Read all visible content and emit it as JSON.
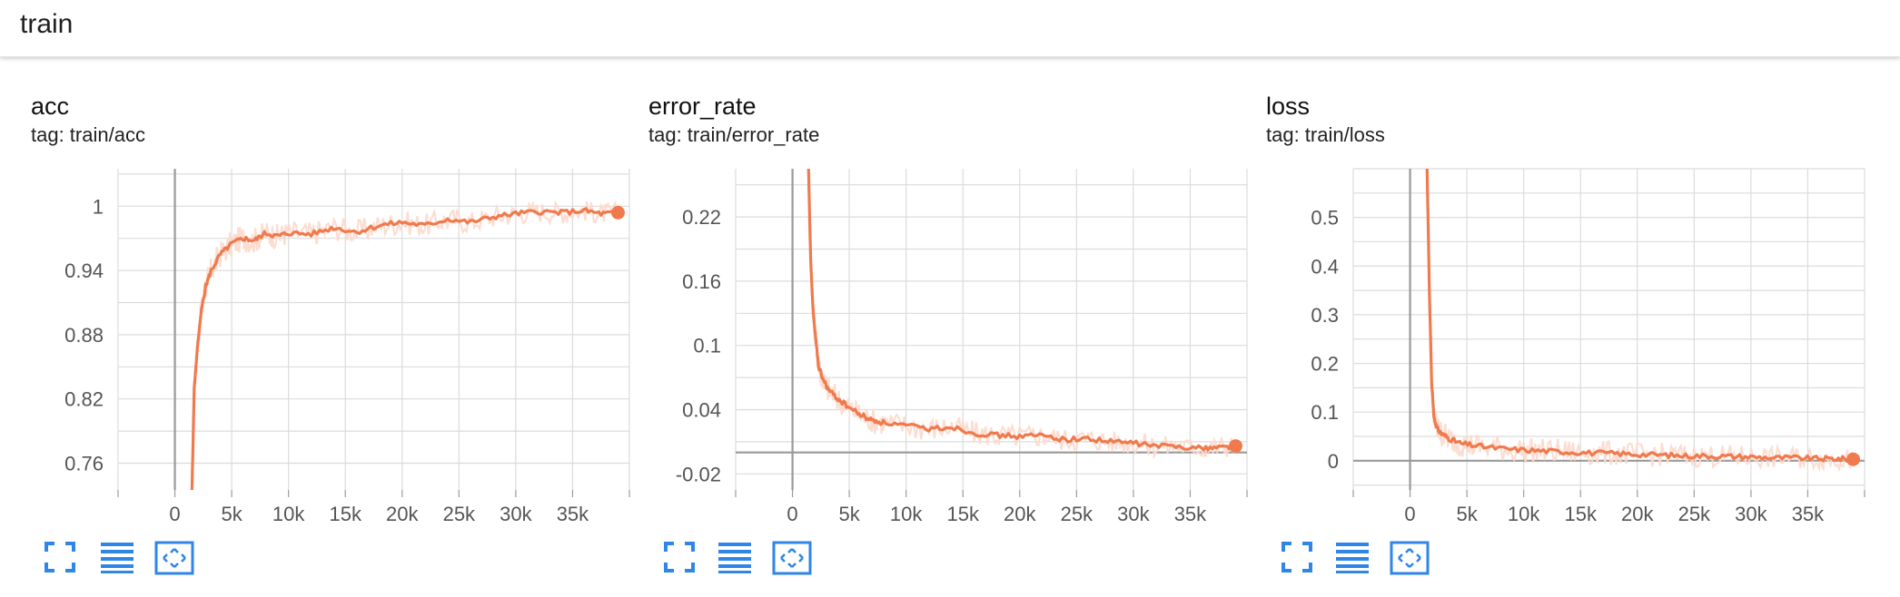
{
  "header": {
    "title": "train"
  },
  "colors": {
    "line": "#f07a4d",
    "raw": "#fcd9cc",
    "grid": "#dcdcdc",
    "axis": "#999999",
    "icon": "#2f86e6"
  },
  "icons": [
    "fit-domain-icon",
    "toggle-log-icon",
    "expand-icon"
  ],
  "chart_data": [
    {
      "type": "line",
      "title": "acc",
      "tag": "tag: train/acc",
      "xlim": [
        -5000,
        40000
      ],
      "ylim": [
        0.735,
        1.035
      ],
      "xticks": [
        0,
        5000,
        10000,
        15000,
        20000,
        25000,
        30000,
        35000
      ],
      "xtick_labels": [
        "0",
        "5k",
        "10k",
        "15k",
        "20k",
        "25k",
        "30k",
        "35k"
      ],
      "yticks": [
        0.76,
        0.82,
        0.88,
        0.94,
        1
      ],
      "ytick_labels": [
        "0.76",
        "0.82",
        "0.88",
        "0.94",
        "1"
      ],
      "series": [
        {
          "x": [
            1500,
            1700,
            2000,
            2300,
            2700,
            3200,
            4000,
            5000,
            6000,
            7000,
            8000,
            9000,
            10000,
            12000,
            14000,
            16000,
            18000,
            20000,
            22000,
            24000,
            26000,
            28000,
            30000,
            32000,
            34000,
            36000,
            37500,
            39000
          ],
          "y": [
            0.73,
            0.83,
            0.87,
            0.9,
            0.925,
            0.94,
            0.955,
            0.965,
            0.97,
            0.968,
            0.975,
            0.972,
            0.975,
            0.974,
            0.98,
            0.976,
            0.982,
            0.985,
            0.982,
            0.988,
            0.985,
            0.99,
            0.993,
            0.995,
            0.994,
            0.996,
            0.993,
            0.994
          ]
        }
      ]
    },
    {
      "type": "line",
      "title": "error_rate",
      "tag": "tag: train/error_rate",
      "xlim": [
        -5000,
        40000
      ],
      "ylim": [
        -0.035,
        0.265
      ],
      "xticks": [
        0,
        5000,
        10000,
        15000,
        20000,
        25000,
        30000,
        35000
      ],
      "xtick_labels": [
        "0",
        "5k",
        "10k",
        "15k",
        "20k",
        "25k",
        "30k",
        "35k"
      ],
      "yticks": [
        -0.02,
        0.04,
        0.1,
        0.16,
        0.22
      ],
      "ytick_labels": [
        "-0.02",
        "0.04",
        "0.1",
        "0.16",
        "0.22"
      ],
      "series": [
        {
          "x": [
            1400,
            1600,
            1800,
            2000,
            2300,
            2700,
            3200,
            4000,
            5000,
            6000,
            7000,
            8000,
            10000,
            12000,
            14000,
            16000,
            18000,
            20000,
            22000,
            24000,
            26000,
            28000,
            30000,
            32000,
            34000,
            36000,
            37500,
            39000
          ],
          "y": [
            0.27,
            0.18,
            0.135,
            0.11,
            0.08,
            0.068,
            0.058,
            0.05,
            0.042,
            0.035,
            0.03,
            0.028,
            0.025,
            0.022,
            0.024,
            0.018,
            0.016,
            0.015,
            0.016,
            0.012,
            0.013,
            0.01,
            0.009,
            0.006,
            0.006,
            0.004,
            0.005,
            0.006
          ]
        }
      ]
    },
    {
      "type": "line",
      "title": "loss",
      "tag": "tag: train/loss",
      "xlim": [
        -5000,
        40000
      ],
      "ylim": [
        -0.06,
        0.6
      ],
      "xticks": [
        0,
        5000,
        10000,
        15000,
        20000,
        25000,
        30000,
        35000
      ],
      "xtick_labels": [
        "0",
        "5k",
        "10k",
        "15k",
        "20k",
        "25k",
        "30k",
        "35k"
      ],
      "yticks": [
        0,
        0.1,
        0.2,
        0.3,
        0.4,
        0.5
      ],
      "ytick_labels": [
        "0",
        "0.1",
        "0.2",
        "0.3",
        "0.4",
        "0.5"
      ],
      "series": [
        {
          "x": [
            1500,
            1700,
            1900,
            2100,
            2400,
            2800,
            3500,
            4500,
            6000,
            8000,
            10000,
            12000,
            14000,
            16000,
            18000,
            20000,
            22000,
            24000,
            26000,
            28000,
            30000,
            32000,
            34000,
            36000,
            37500,
            39000
          ],
          "y": [
            0.6,
            0.35,
            0.16,
            0.09,
            0.065,
            0.055,
            0.045,
            0.035,
            0.03,
            0.025,
            0.022,
            0.02,
            0.018,
            0.016,
            0.015,
            0.013,
            0.012,
            0.01,
            0.01,
            0.009,
            0.008,
            0.006,
            0.006,
            0.004,
            0.004,
            0.003
          ]
        }
      ]
    }
  ]
}
